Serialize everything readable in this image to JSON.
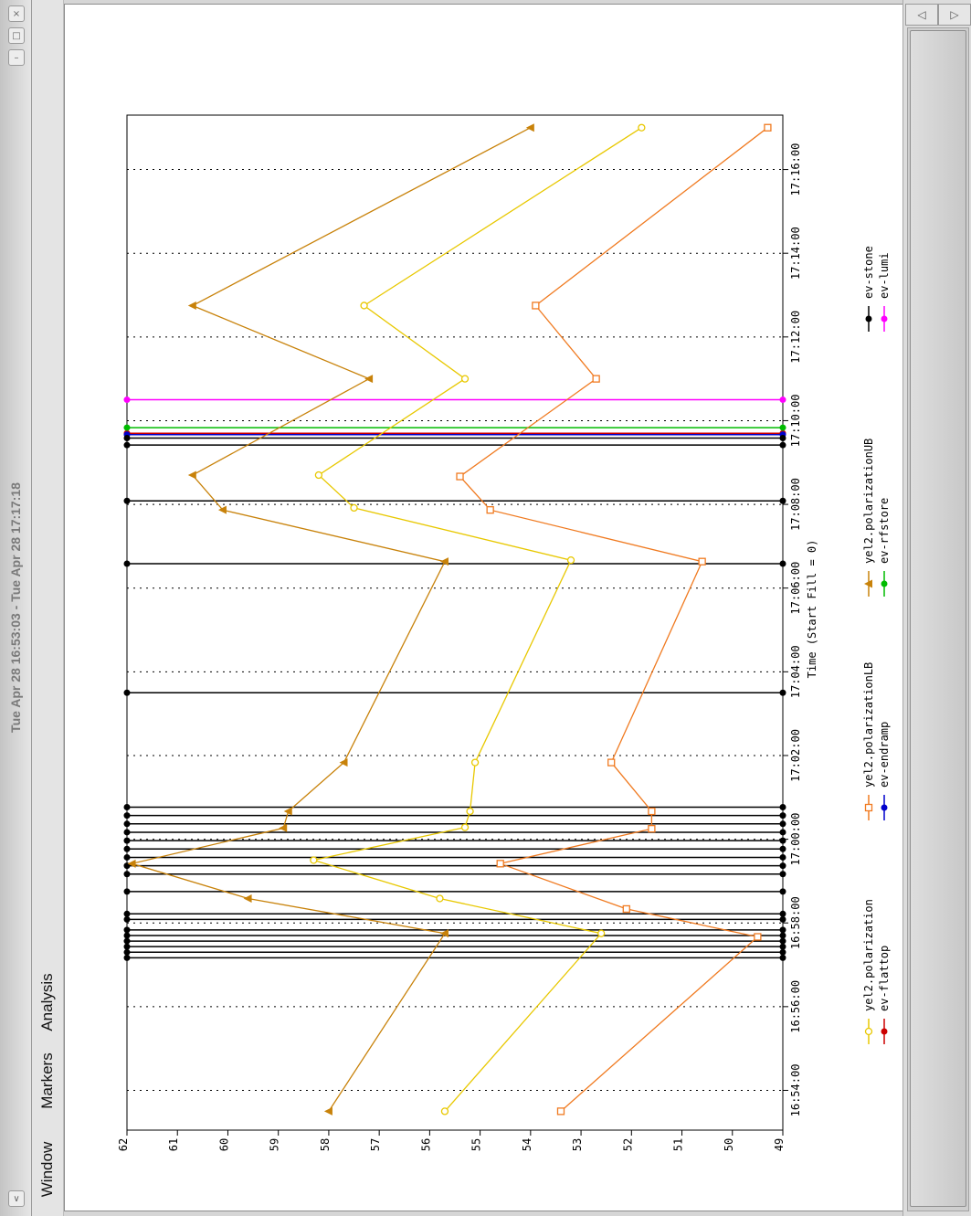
{
  "window": {
    "title": "Tue Apr 28 16:53:03 - Tue Apr 28 17:17:18",
    "controls": {
      "close": "×",
      "maximize": "□",
      "minimize": "–",
      "menu": "∨"
    }
  },
  "menu": {
    "items": [
      "Window",
      "Markers",
      "Analysis"
    ]
  },
  "scrollbar": {
    "icons": [
      "scroll-up-arrow-icon",
      "scroll-down-arrow-icon"
    ]
  },
  "chart_data": {
    "type": "line",
    "orientation": "rotated-90-ccw",
    "title": "",
    "xlabel": "Time (Start Fill = 0)",
    "ylabel": "",
    "x_range": [
      "16:53:03",
      "17:17:18"
    ],
    "x_ticks": [
      "16:54:00",
      "16:56:00",
      "16:58:00",
      "17:00:00",
      "17:02:00",
      "17:04:00",
      "17:06:00",
      "17:08:00",
      "17:10:00",
      "17:12:00",
      "17:14:00",
      "17:16:00"
    ],
    "ylim": [
      49,
      62
    ],
    "y_ticks": [
      62,
      61,
      60,
      59,
      58,
      57,
      56,
      55,
      54,
      53,
      52,
      51,
      50,
      49
    ],
    "grid": "dotted vertical at time ticks",
    "series": [
      {
        "name": "yel2.polarization",
        "color": "#e8c800",
        "marker": "circle-open",
        "points": [
          [
            "16:53:30",
            55.7
          ],
          [
            "16:57:45",
            52.6
          ],
          [
            "16:58:35",
            55.8
          ],
          [
            "16:59:30",
            58.3
          ],
          [
            "17:00:17",
            55.3
          ],
          [
            "17:00:40",
            55.2
          ],
          [
            "17:01:50",
            55.1
          ],
          [
            "17:06:40",
            53.2
          ],
          [
            "17:07:55",
            57.5
          ],
          [
            "17:08:42",
            58.2
          ],
          [
            "17:11:00",
            55.3
          ],
          [
            "17:12:45",
            57.3
          ],
          [
            "17:17:00",
            51.8
          ]
        ]
      },
      {
        "name": "yel2.polarizationLB",
        "color": "#f07a20",
        "marker": "square-open",
        "points": [
          [
            "16:53:30",
            53.4
          ],
          [
            "16:57:40",
            49.5
          ],
          [
            "16:58:20",
            52.1
          ],
          [
            "16:59:25",
            54.6
          ],
          [
            "17:00:15",
            51.6
          ],
          [
            "17:00:40",
            51.6
          ],
          [
            "17:01:50",
            52.4
          ],
          [
            "17:06:38",
            50.6
          ],
          [
            "17:07:52",
            54.8
          ],
          [
            "17:08:40",
            55.4
          ],
          [
            "17:11:00",
            52.7
          ],
          [
            "17:12:45",
            53.9
          ],
          [
            "17:17:00",
            49.3
          ]
        ]
      },
      {
        "name": "yel2.polarizationUB",
        "color": "#c8820a",
        "marker": "triangle-filled",
        "points": [
          [
            "16:53:30",
            58.0
          ],
          [
            "16:57:45",
            55.7
          ],
          [
            "16:58:35",
            59.6
          ],
          [
            "16:59:25",
            61.9
          ],
          [
            "17:00:16",
            58.9
          ],
          [
            "17:00:40",
            58.8
          ],
          [
            "17:01:50",
            57.7
          ],
          [
            "17:06:38",
            55.7
          ],
          [
            "17:07:52",
            60.1
          ],
          [
            "17:08:42",
            60.7
          ],
          [
            "17:11:00",
            57.2
          ],
          [
            "17:12:45",
            60.7
          ],
          [
            "17:17:00",
            54.0
          ]
        ]
      }
    ],
    "markers": [
      {
        "name": "ev-flattop",
        "color": "#cc0000",
        "times": [
          "17:09:42"
        ]
      },
      {
        "name": "ev-endramp",
        "color": "#0000cc",
        "times": [
          "17:09:40"
        ]
      },
      {
        "name": "ev-rfstore",
        "color": "#00bb00",
        "times": [
          "17:09:50"
        ]
      },
      {
        "name": "ev-stone",
        "color": "#000000",
        "times": [
          "16:57:10",
          "16:57:18",
          "16:57:26",
          "16:57:34",
          "16:57:42",
          "16:57:50",
          "16:58:05",
          "16:58:13",
          "16:58:45",
          "16:59:10",
          "16:59:22",
          "16:59:34",
          "16:59:46",
          "16:59:58",
          "17:00:10",
          "17:00:22",
          "17:00:34",
          "17:00:46",
          "17:03:30",
          "17:06:35",
          "17:08:05",
          "17:09:25",
          "17:09:35"
        ]
      },
      {
        "name": "ev-lumi",
        "color": "#ff00ff",
        "times": [
          "17:10:30"
        ]
      }
    ]
  }
}
